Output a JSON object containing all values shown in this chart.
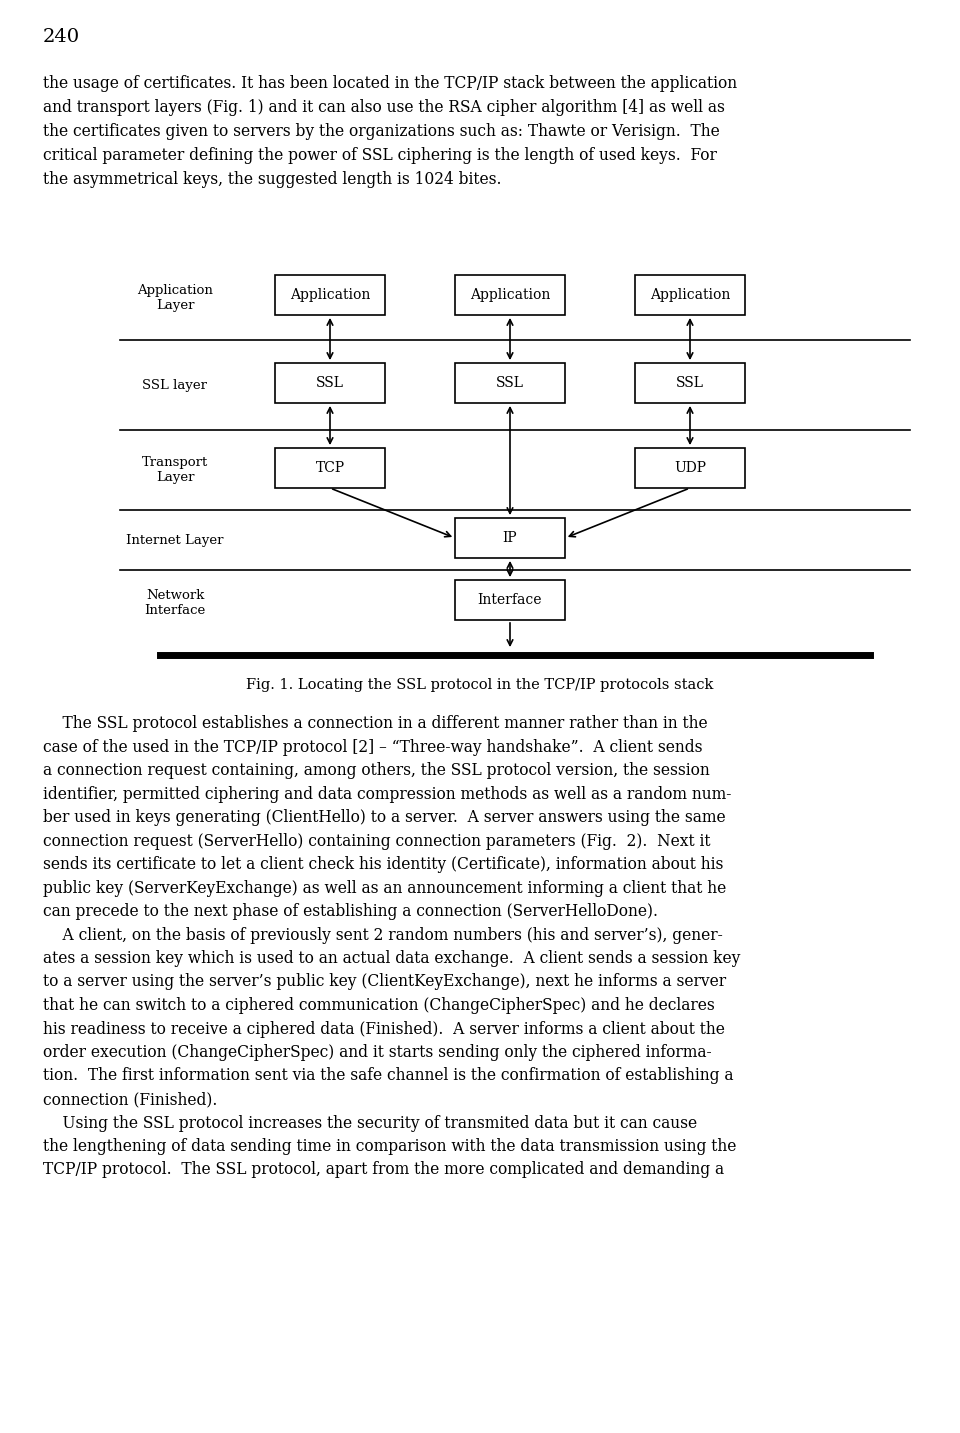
{
  "page_number": "240",
  "background_color": "#ffffff",
  "text_color": "#000000",
  "fig_caption": "Fig. 1. Locating the SSL protocol in the TCP/IP protocols stack",
  "para1_lines": [
    "the usage of certificates. It has been located in the TCP/IP stack between the application",
    "and transport layers (Fig. 1) and it can also use the RSA cipher algorithm [4] as well as",
    "the certificates given to servers by the organizations such as: Thawte or Verisign.  The",
    "critical parameter defining the power of SSL ciphering is the length of used keys.  For",
    "the asymmetrical keys, the suggested length is 1024 bites."
  ],
  "body_lines": [
    "    The SSL protocol establishes a connection in a different manner rather than in the",
    "case of the used in the TCP/IP protocol [2] – “Three-way handshake”.  A client sends",
    "a connection request containing, among others, the SSL protocol version, the session",
    "identifier, permitted ciphering and data compression methods as well as a random num-",
    "ber used in keys generating (ClientHello) to a server.  A server answers using the same",
    "connection request (ServerHello) containing connection parameters (Fig.  2).  Next it",
    "sends its certificate to let a client check his identity (Certificate), information about his",
    "public key (ServerKeyExchange) as well as an announcement informing a client that he",
    "can precede to the next phase of establishing a connection (ServerHelloDone).",
    "    A client, on the basis of previously sent 2 random numbers (his and server’s), gener-",
    "ates a session key which is used to an actual data exchange.  A client sends a session key",
    "to a server using the server’s public key (ClientKeyExchange), next he informs a server",
    "that he can switch to a ciphered communication (ChangeCipherSpec) and he declares",
    "his readiness to receive a ciphered data (Finished).  A server informs a client about the",
    "order execution (ChangeCipherSpec) and it starts sending only the ciphered informa-",
    "tion.  The first information sent via the safe channel is the confirmation of establishing a",
    "connection (Finished).",
    "    Using the SSL protocol increases the security of transmited data but it can cause",
    "the lengthening of data sending time in comparison with the data transmission using the",
    "TCP/IP protocol.  The SSL protocol, apart from the more complicated and demanding a"
  ]
}
